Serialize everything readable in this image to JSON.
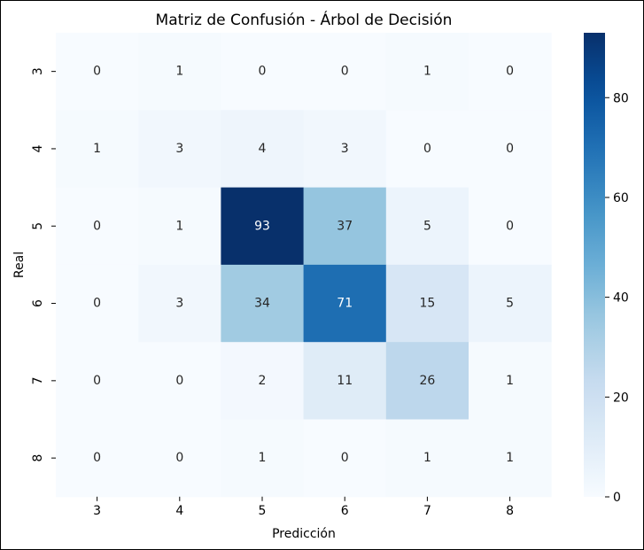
{
  "chart_data": {
    "type": "heatmap",
    "title": "Matriz de Confusión - Árbol de Decisión",
    "xlabel": "Predicción",
    "ylabel": "Real",
    "x_categories": [
      "3",
      "4",
      "5",
      "6",
      "7",
      "8"
    ],
    "y_categories": [
      "3",
      "4",
      "5",
      "6",
      "7",
      "8"
    ],
    "values": [
      [
        0,
        1,
        0,
        0,
        1,
        0
      ],
      [
        1,
        3,
        4,
        3,
        0,
        0
      ],
      [
        0,
        1,
        93,
        37,
        5,
        0
      ],
      [
        0,
        3,
        34,
        71,
        15,
        5
      ],
      [
        0,
        0,
        2,
        11,
        26,
        1
      ],
      [
        0,
        0,
        1,
        0,
        1,
        1
      ]
    ],
    "colormap": "Blues",
    "color_range": [
      0,
      93
    ],
    "colorbar_ticks": [
      "0",
      "20",
      "40",
      "60",
      "80"
    ],
    "colorbar_tick_values": [
      0,
      20,
      40,
      60,
      80
    ],
    "annotation_light_color": "#ffffff",
    "annotation_dark_color": "#262626",
    "grid": false,
    "colorbar_position": "right"
  }
}
